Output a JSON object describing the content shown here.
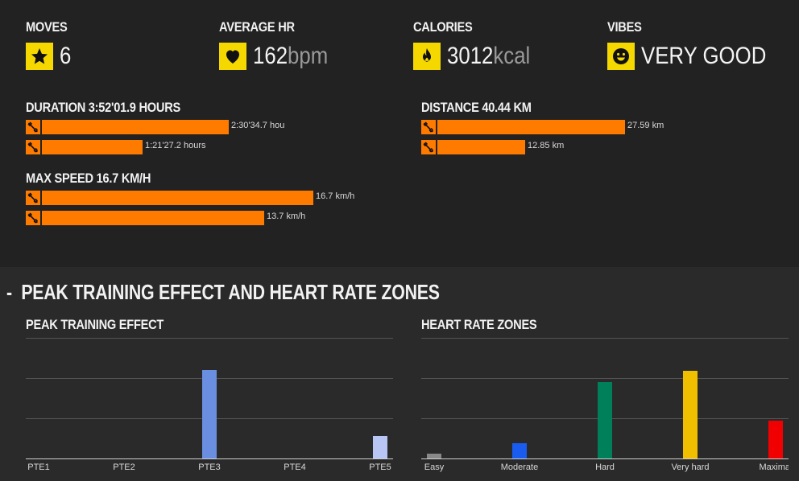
{
  "stats": {
    "moves": {
      "label": "MOVES",
      "value": "6",
      "icon": "star-icon"
    },
    "average_hr": {
      "label": "AVERAGE HR",
      "value": "162",
      "unit": "bpm",
      "icon": "heart-icon"
    },
    "calories": {
      "label": "CALORIES",
      "value": "3012",
      "unit": "kcal",
      "icon": "flame-icon"
    },
    "vibes": {
      "label": "VIBES",
      "value": "VERY GOOD",
      "icon": "smiley-icon"
    }
  },
  "metrics": {
    "duration": {
      "title": "DURATION 3:52'01.9 HOURS",
      "bars": [
        {
          "text": "2:30'34.7 hou",
          "fraction": 0.65,
          "icon": "skate-icon"
        },
        {
          "text": "1:21'27.2 hours",
          "fraction": 0.35,
          "icon": "skate-icon"
        }
      ]
    },
    "distance": {
      "title": "DISTANCE 40.44 KM",
      "bars": [
        {
          "text": "27.59 km",
          "fraction": 0.682,
          "icon": "skate-icon"
        },
        {
          "text": "12.85 km",
          "fraction": 0.318,
          "icon": "skate-icon"
        }
      ]
    },
    "max_speed": {
      "title": "MAX SPEED 16.7 KM/H",
      "bars": [
        {
          "text": "16.7 km/h",
          "fraction": 1.0,
          "icon": "skate-icon"
        },
        {
          "text": "13.7 km/h",
          "fraction": 0.82,
          "icon": "skate-icon"
        }
      ]
    }
  },
  "section": {
    "dash": "-",
    "title": "PEAK TRAINING EFFECT AND HEART RATE ZONES"
  },
  "colors": {
    "accent": "#ff7b00",
    "badge": "#f5d800"
  },
  "chart_data": [
    {
      "type": "bar",
      "title": "PEAK TRAINING EFFECT",
      "categories": [
        "PTE1",
        "PTE2",
        "PTE3",
        "PTE4",
        "PTE5"
      ],
      "values": [
        0,
        0,
        2.2,
        0,
        0.56
      ],
      "ylim": [
        0,
        3
      ],
      "grid": true,
      "colors": [
        "#6a8fe0",
        "#6a8fe0",
        "#6a8fe0",
        "#6a8fe0",
        "#b8c6f5"
      ]
    },
    {
      "type": "bar",
      "title": "HEART RATE ZONES",
      "categories": [
        "Easy",
        "Moderate",
        "Hard",
        "Very hard",
        "Maximal"
      ],
      "values": [
        0.12,
        0.38,
        1.9,
        2.18,
        0.94
      ],
      "ylim": [
        0,
        3
      ],
      "grid": true,
      "colors": [
        "#888888",
        "#1a5cf0",
        "#00805a",
        "#f0c000",
        "#f00000"
      ]
    }
  ]
}
